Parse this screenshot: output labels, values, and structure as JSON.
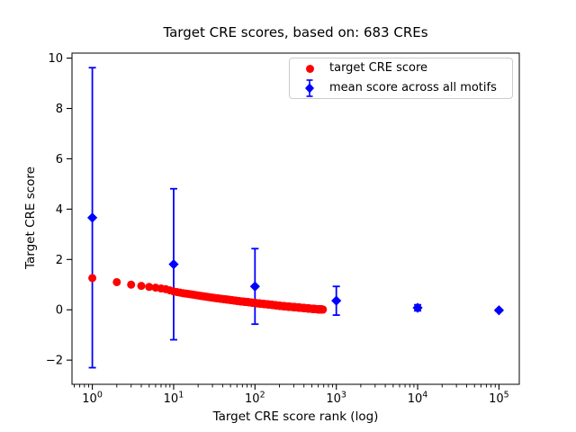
{
  "chart_data": {
    "type": "scatter",
    "title": "Target CRE scores, based on: 683 CREs",
    "xlabel": "Target CRE score rank (log)",
    "ylabel": "Target CRE score",
    "x_scale": "log",
    "xlim_log10": [
      -0.25,
      5.25
    ],
    "ylim": [
      -2.96,
      10.2
    ],
    "xticks_base": "10",
    "xticks_exponents": [
      0,
      1,
      2,
      3,
      4,
      5
    ],
    "yticks": [
      -2,
      0,
      2,
      4,
      6,
      8,
      10
    ],
    "grid": false,
    "legend_position": "upper right",
    "colors": {
      "target_series": "#ff0000",
      "mean_series": "#0000ff",
      "axes": "#000000",
      "legend_border": "#cccccc"
    },
    "series": [
      {
        "name": "target CRE score",
        "marker": "circle",
        "color": "#ff0000",
        "n_points": 683,
        "anchors": [
          [
            1,
            1.26
          ],
          [
            2,
            1.1
          ],
          [
            3,
            1.0
          ],
          [
            4,
            0.95
          ],
          [
            5,
            0.91
          ],
          [
            6,
            0.88
          ],
          [
            8,
            0.82
          ],
          [
            10,
            0.73
          ],
          [
            13,
            0.66
          ],
          [
            16,
            0.62
          ],
          [
            20,
            0.57
          ],
          [
            25,
            0.52
          ],
          [
            32,
            0.47
          ],
          [
            40,
            0.43
          ],
          [
            50,
            0.39
          ],
          [
            65,
            0.34
          ],
          [
            80,
            0.31
          ],
          [
            100,
            0.27
          ],
          [
            130,
            0.23
          ],
          [
            160,
            0.2
          ],
          [
            200,
            0.16
          ],
          [
            250,
            0.13
          ],
          [
            320,
            0.1
          ],
          [
            400,
            0.07
          ],
          [
            500,
            0.04
          ],
          [
            600,
            0.02
          ],
          [
            683,
            0.01
          ]
        ]
      },
      {
        "name": "mean score across all motifs",
        "marker": "diamond",
        "color": "#0000ff",
        "points": [
          {
            "x": 1,
            "y": 3.66,
            "err": 5.96
          },
          {
            "x": 10,
            "y": 1.81,
            "err": 3.0
          },
          {
            "x": 100,
            "y": 0.93,
            "err": 1.5
          },
          {
            "x": 1000,
            "y": 0.36,
            "err": 0.57
          },
          {
            "x": 10000,
            "y": 0.08,
            "err": 0.12
          },
          {
            "x": 100000,
            "y": -0.02,
            "err": 0.04
          }
        ]
      }
    ]
  }
}
